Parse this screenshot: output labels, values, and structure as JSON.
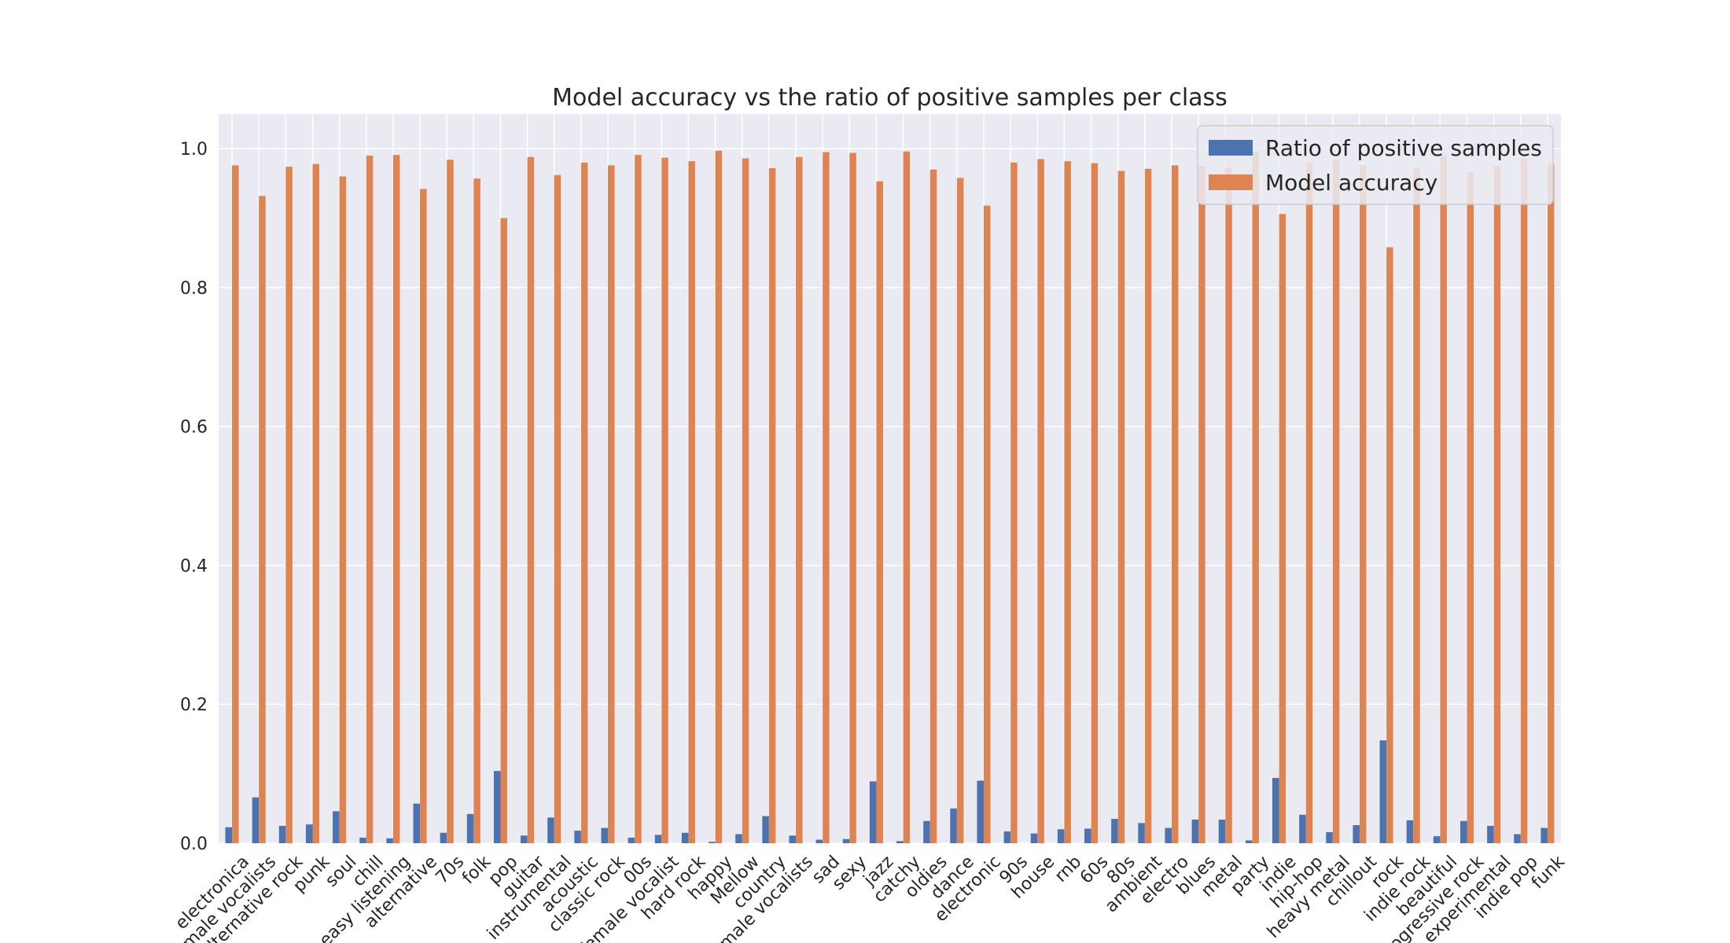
{
  "chart_data": {
    "type": "bar",
    "title": "Model accuracy vs the ratio of positive samples per class",
    "xlabel": "",
    "ylabel": "",
    "ylim": [
      0,
      1.05
    ],
    "yticks": [
      0.0,
      0.2,
      0.4,
      0.6,
      0.8,
      1.0
    ],
    "ytick_labels": [
      "0.0",
      "0.2",
      "0.4",
      "0.6",
      "0.8",
      "1.0"
    ],
    "grid": true,
    "legend_position": "top-right",
    "categories": [
      "electronica",
      "female vocalists",
      "alternative rock",
      "punk",
      "soul",
      "chill",
      "easy listening",
      "alternative",
      "70s",
      "folk",
      "pop",
      "guitar",
      "instrumental",
      "acoustic",
      "classic rock",
      "00s",
      "female vocalist",
      "hard rock",
      "happy",
      "Mellow",
      "country",
      "male vocalists",
      "sad",
      "sexy",
      "jazz",
      "catchy",
      "oldies",
      "dance",
      "electronic",
      "90s",
      "house",
      "rnb",
      "60s",
      "80s",
      "ambient",
      "electro",
      "blues",
      "metal",
      "party",
      "indie",
      "hip-hop",
      "heavy metal",
      "chillout",
      "rock",
      "indie rock",
      "beautiful",
      "progressive rock",
      "experimental",
      "indie pop",
      "funk"
    ],
    "series": [
      {
        "name": "Ratio of positive samples",
        "color": "#4c72b0",
        "values": [
          0.023,
          0.066,
          0.025,
          0.027,
          0.046,
          0.008,
          0.007,
          0.057,
          0.015,
          0.042,
          0.104,
          0.011,
          0.037,
          0.018,
          0.022,
          0.008,
          0.012,
          0.015,
          0.002,
          0.013,
          0.039,
          0.011,
          0.005,
          0.006,
          0.089,
          0.003,
          0.032,
          0.05,
          0.09,
          0.017,
          0.014,
          0.02,
          0.021,
          0.035,
          0.029,
          0.022,
          0.034,
          0.034,
          0.004,
          0.094,
          0.041,
          0.016,
          0.026,
          0.148,
          0.033,
          0.01,
          0.032,
          0.025,
          0.013,
          0.022
        ]
      },
      {
        "name": "Model accuracy",
        "color": "#dd8452",
        "values": [
          0.976,
          0.932,
          0.974,
          0.978,
          0.96,
          0.99,
          0.991,
          0.942,
          0.984,
          0.957,
          0.9,
          0.988,
          0.962,
          0.98,
          0.976,
          0.991,
          0.987,
          0.982,
          0.997,
          0.986,
          0.972,
          0.988,
          0.995,
          0.994,
          0.953,
          0.996,
          0.97,
          0.958,
          0.918,
          0.98,
          0.985,
          0.982,
          0.979,
          0.968,
          0.971,
          0.976,
          0.975,
          0.972,
          0.996,
          0.906,
          0.98,
          0.984,
          0.976,
          0.858,
          0.971,
          0.99,
          0.966,
          0.975,
          0.986,
          0.977
        ]
      }
    ]
  },
  "colors": {
    "axes_background": "#eaeaf2",
    "grid": "#ffffff",
    "text": "#262626"
  }
}
